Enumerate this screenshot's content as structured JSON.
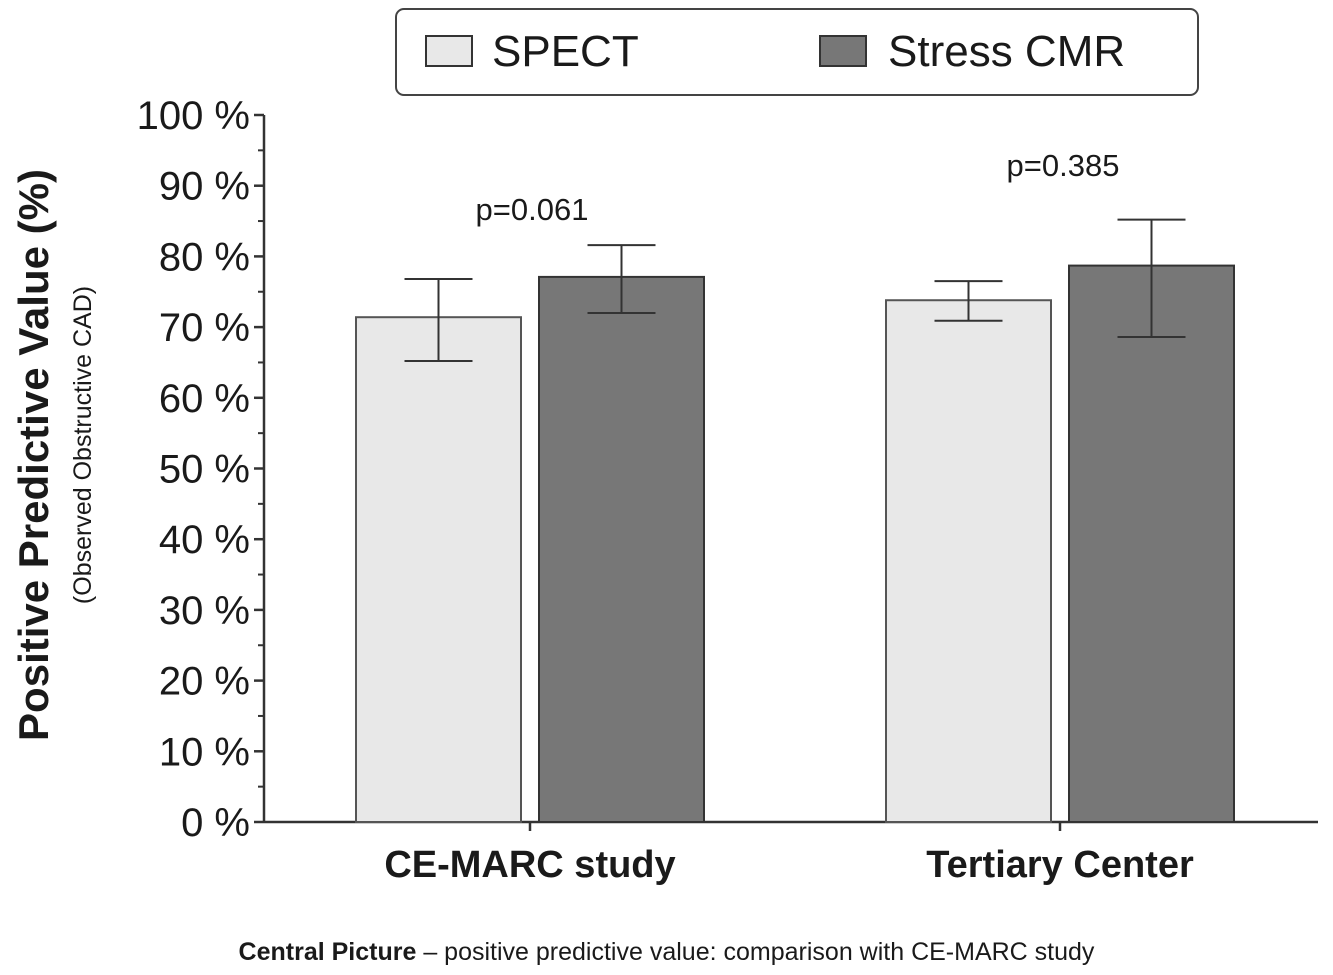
{
  "caption": {
    "bold": "Central Picture",
    "rest": " – positive predictive value: comparison with CE-MARC study"
  },
  "chart_data": {
    "type": "bar",
    "title": "",
    "ylabel": "Positive Predictive Value (%)",
    "ylabel_sub": "(Observed Obstructive CAD)",
    "xlabel": "",
    "categories": [
      "CE-MARC study",
      "Tertiary Center"
    ],
    "series": [
      {
        "name": "SPECT",
        "color": "#e8e8e8",
        "values": [
          71.4,
          73.8
        ],
        "error_low": [
          65.2,
          70.9
        ],
        "error_high": [
          76.8,
          76.5
        ]
      },
      {
        "name": "Stress CMR",
        "color": "#777777",
        "values": [
          77.1,
          78.7
        ],
        "error_low": [
          72.0,
          68.6
        ],
        "error_high": [
          81.6,
          85.2
        ]
      }
    ],
    "annotations": [
      "p=0.061",
      "p=0.385"
    ],
    "ylim": [
      0,
      100
    ],
    "yticks": [
      0,
      10,
      20,
      30,
      40,
      50,
      60,
      70,
      80,
      90,
      100
    ],
    "ytick_labels": [
      "0 %",
      "10 %",
      "20 %",
      "30 %",
      "40 %",
      "50 %",
      "60 %",
      "70 %",
      "80 %",
      "90 %",
      "100 %"
    ],
    "grid": false,
    "legend_position": "top-center"
  }
}
